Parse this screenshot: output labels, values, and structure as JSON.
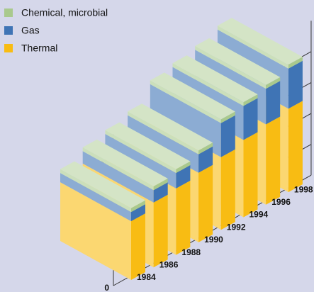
{
  "chart_data": {
    "type": "bar",
    "stacked": true,
    "categories": [
      "1984",
      "1986",
      "1988",
      "1990",
      "1992",
      "1994",
      "1996",
      "1998"
    ],
    "series": [
      {
        "name": "Chemical, microbial",
        "color": "#a9c98d",
        "values": [
          25,
          25,
          25,
          25,
          25,
          25,
          25,
          25
        ]
      },
      {
        "name": "Gas",
        "color": "#3f74b5",
        "values": [
          60,
          80,
          100,
          120,
          220,
          220,
          230,
          260
        ]
      },
      {
        "name": "Thermal",
        "color": "#f8bc13",
        "values": [
          380,
          420,
          430,
          450,
          470,
          500,
          520,
          540
        ]
      }
    ],
    "ylim": [
      0,
      1000
    ],
    "yticks": [
      0,
      200,
      400,
      600,
      800
    ],
    "grid": true,
    "legend": "top-left"
  }
}
